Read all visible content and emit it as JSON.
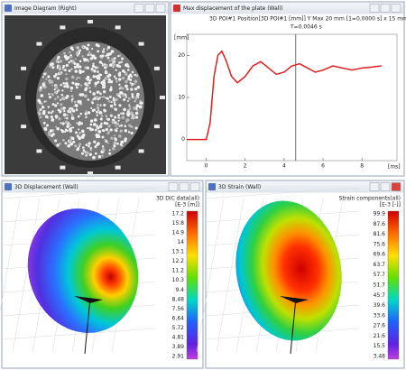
{
  "windows": [
    {
      "title": "Image Diagram (Right)"
    },
    {
      "title": "Max displacement of the plate (Wall)",
      "header": "3D POI#1  Position[3D POI#1 [mm]] Y Max 20 mm [1=0.0000 s] x 15 mm",
      "cursor_label": "T=0.0046 s",
      "chart": {
        "type": "line",
        "y_unit": "[mm]",
        "x_unit": "[ms]",
        "x": [
          -1,
          0,
          0.2,
          0.4,
          0.6,
          0.8,
          1.0,
          1.3,
          1.6,
          2.0,
          2.4,
          2.8,
          3.2,
          3.6,
          4.0,
          4.4,
          4.8,
          5.2,
          5.6,
          6.0,
          6.5,
          7.0,
          7.5,
          8.0,
          8.5,
          9.0
        ],
        "values": [
          0,
          0,
          4,
          15,
          20,
          21,
          19,
          15,
          13.5,
          15,
          17.5,
          18.5,
          17,
          15.5,
          16,
          17.5,
          18,
          17,
          16,
          16.5,
          17.5,
          17,
          16.5,
          17,
          17.2,
          17.5
        ],
        "color": "#e02020",
        "xlim": [
          -1,
          9.8
        ],
        "ylim": [
          -5,
          25
        ],
        "xticks": [
          0,
          2,
          4,
          6,
          8
        ],
        "yticks": [
          0,
          10,
          20
        ],
        "cursor": 4.6
      }
    },
    {
      "title": "3D Displacement (Wall)",
      "legend_title": "3D DIC data(all)",
      "legend_unit": "[E-3 [m]]",
      "legend_labels": [
        "17.2",
        "15.8",
        "14.9",
        "14",
        "13.1",
        "12.2",
        "11.2",
        "10.3",
        "9.4",
        "8.48",
        "7.56",
        "6.64",
        "5.72",
        "4.81",
        "3.89",
        "2.91"
      ]
    },
    {
      "title": "3D Strain (Wall)",
      "legend_title": "Strain components(all)",
      "legend_unit": "[E-3 [-]]",
      "legend_labels": [
        "99.9",
        "87.6",
        "81.6",
        "75.6",
        "69.6",
        "63.7",
        "57.7",
        "51.7",
        "45.7",
        "39.6",
        "33.6",
        "27.6",
        "21.6",
        "15.5",
        "3.48"
      ]
    }
  ]
}
